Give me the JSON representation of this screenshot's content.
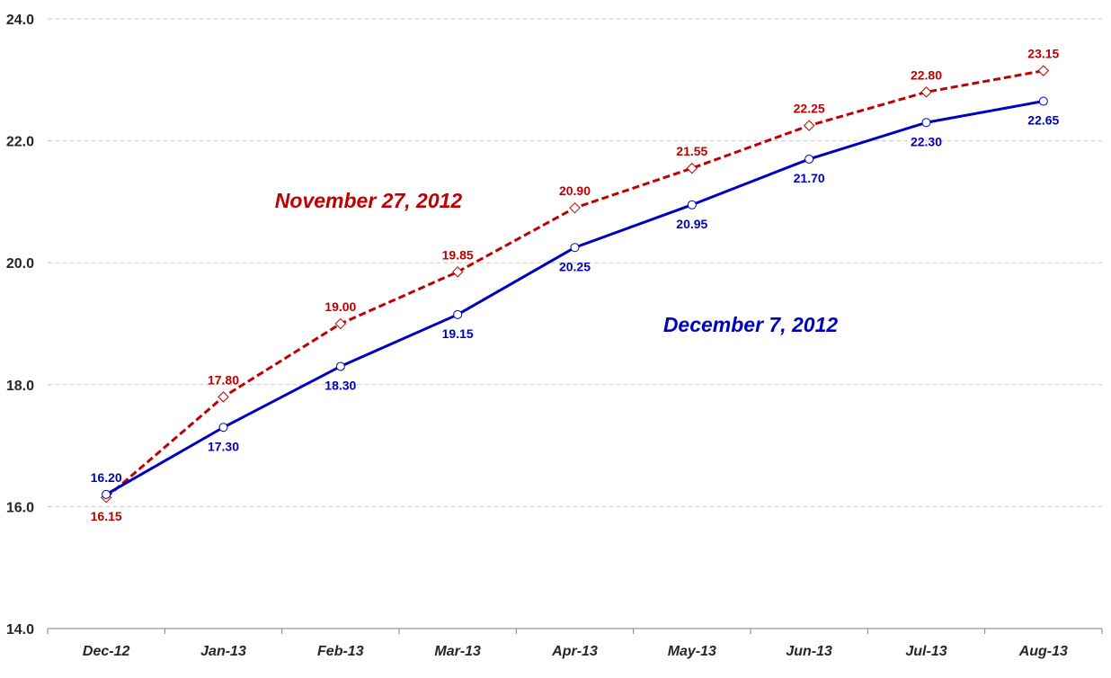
{
  "chart_data": {
    "type": "line",
    "categories": [
      "Dec-12",
      "Jan-13",
      "Feb-13",
      "Mar-13",
      "Apr-13",
      "May-13",
      "Jun-13",
      "Jul-13",
      "Aug-13"
    ],
    "ylim": [
      14.0,
      24.0
    ],
    "yticks": [
      14.0,
      16.0,
      18.0,
      20.0,
      22.0,
      24.0
    ],
    "ytick_labels": [
      "14.0",
      "16.0",
      "18.0",
      "20.0",
      "22.0",
      "24.0"
    ],
    "grid": true,
    "series": [
      {
        "name": "November 27, 2012",
        "color": "#c00000",
        "line_style": "dashed",
        "marker": "diamond",
        "values": [
          16.15,
          17.8,
          19.0,
          19.85,
          20.9,
          21.55,
          22.25,
          22.8,
          23.15
        ],
        "labels": [
          "16.15",
          "17.80",
          "19.00",
          "19.85",
          "20.90",
          "21.55",
          "22.25",
          "22.80",
          "23.15"
        ]
      },
      {
        "name": "December 7, 2012",
        "color": "#0000c0",
        "line_style": "solid",
        "marker": "circle",
        "values": [
          16.2,
          17.3,
          18.3,
          19.15,
          20.25,
          20.95,
          21.7,
          22.3,
          22.65
        ],
        "labels": [
          "16.20",
          "17.30",
          "18.30",
          "19.15",
          "20.25",
          "20.95",
          "21.70",
          "22.30",
          "22.65"
        ]
      }
    ]
  }
}
